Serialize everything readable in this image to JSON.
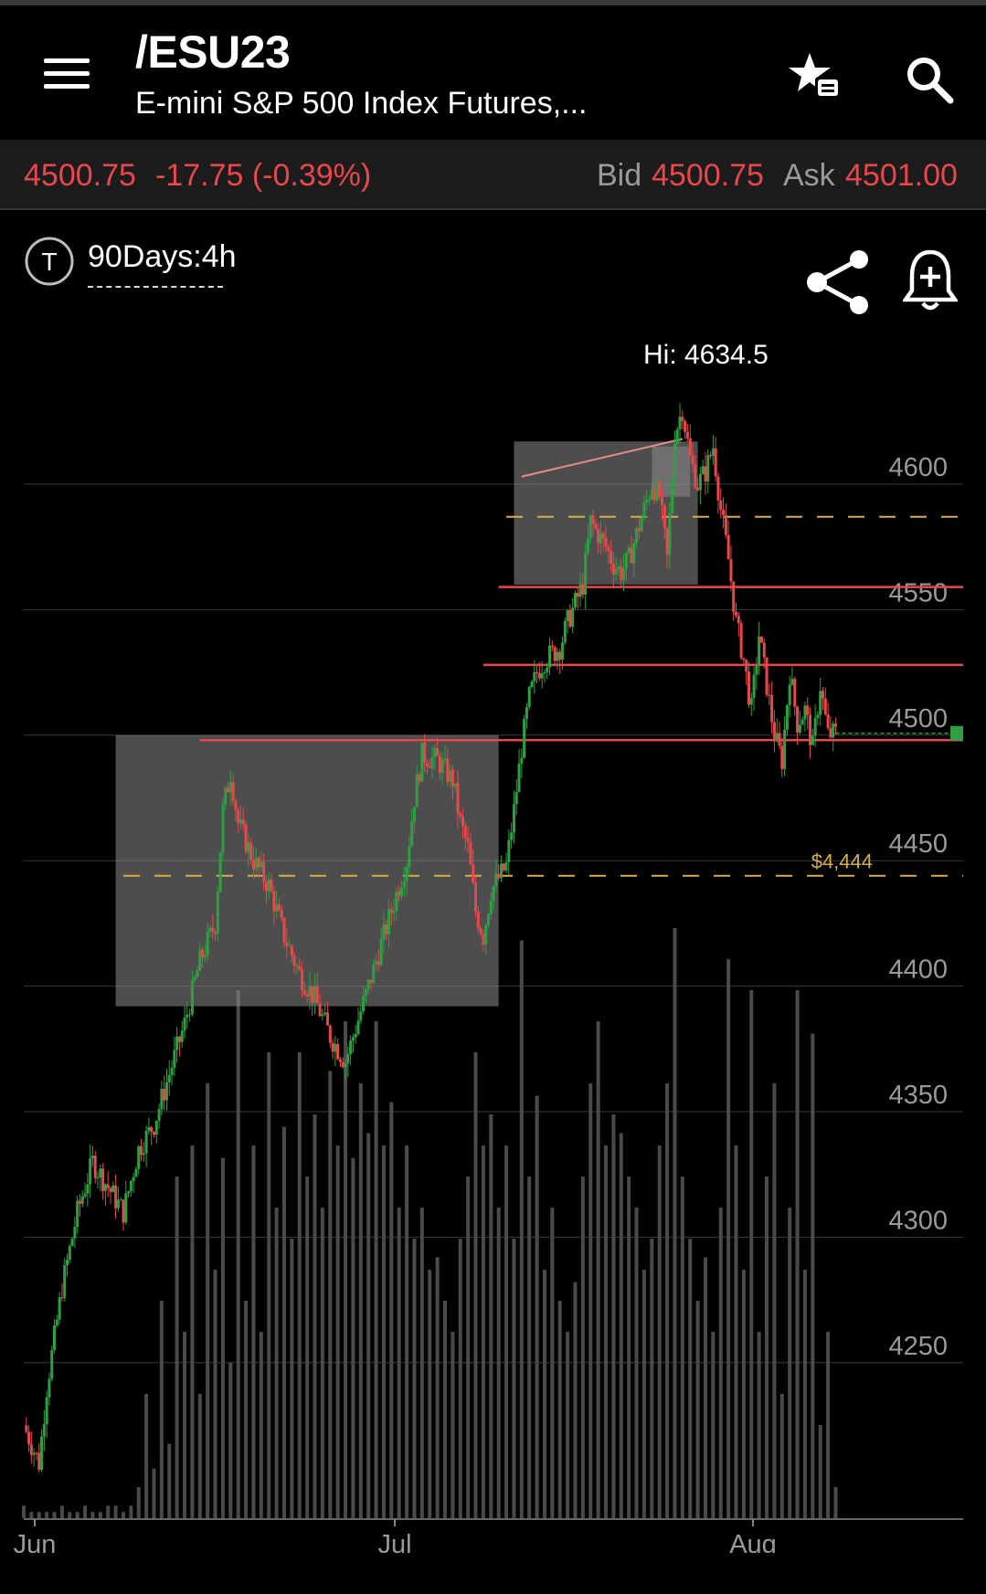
{
  "header": {
    "symbol": "/ESU23",
    "description": "E-mini S&P 500 Index Futures,...",
    "icons": [
      "menu-icon",
      "watchlist-add-icon",
      "search-icon"
    ]
  },
  "quote": {
    "last": "4500.75",
    "change": "-17.75 (-0.39%)",
    "bid_label": "Bid",
    "bid": "4500.75",
    "ask_label": "Ask",
    "ask": "4501.00"
  },
  "chart_header": {
    "timeframe": "90Days:4h",
    "icons": [
      "timeframe-icon",
      "share-icon",
      "price-alert-icon"
    ]
  },
  "colors": {
    "down": "#e8474b",
    "up": "#2ea043",
    "dashed_line": "#d4b04a",
    "box": "#8c8c8c",
    "background": "#000000"
  },
  "chart_data": {
    "type": "candlestick",
    "title": "",
    "high_label": "Hi: 4634.5",
    "yticks": [
      4250,
      4300,
      4350,
      4400,
      4450,
      4500,
      4550,
      4600
    ],
    "xticks": [
      "Jun",
      "Jul",
      "Aug"
    ],
    "ylim": [
      4200,
      4650
    ],
    "grid": true,
    "close_path": [
      [
        0,
        4225
      ],
      [
        2,
        4210
      ],
      [
        3,
        4240
      ],
      [
        5,
        4280
      ],
      [
        7,
        4310
      ],
      [
        9,
        4330
      ],
      [
        11,
        4320
      ],
      [
        13,
        4310
      ],
      [
        15,
        4335
      ],
      [
        17,
        4345
      ],
      [
        19,
        4365
      ],
      [
        21,
        4385
      ],
      [
        23,
        4410
      ],
      [
        25,
        4425
      ],
      [
        26,
        4470
      ],
      [
        27,
        4485
      ],
      [
        28,
        4465
      ],
      [
        30,
        4450
      ],
      [
        32,
        4440
      ],
      [
        34,
        4420
      ],
      [
        36,
        4405
      ],
      [
        38,
        4395
      ],
      [
        40,
        4380
      ],
      [
        42,
        4370
      ],
      [
        44,
        4390
      ],
      [
        46,
        4410
      ],
      [
        48,
        4430
      ],
      [
        50,
        4450
      ],
      [
        51,
        4475
      ],
      [
        52,
        4492
      ],
      [
        54,
        4490
      ],
      [
        56,
        4482
      ],
      [
        57,
        4465
      ],
      [
        58,
        4455
      ],
      [
        59,
        4430
      ],
      [
        60,
        4420
      ],
      [
        61,
        4438
      ],
      [
        63,
        4448
      ],
      [
        64,
        4470
      ],
      [
        65,
        4495
      ],
      [
        66,
        4515
      ],
      [
        67,
        4525
      ],
      [
        68,
        4530
      ],
      [
        70,
        4535
      ],
      [
        71,
        4545
      ],
      [
        73,
        4560
      ],
      [
        74,
        4585
      ],
      [
        75,
        4580
      ],
      [
        76,
        4575
      ],
      [
        77,
        4568
      ],
      [
        78,
        4565
      ],
      [
        79,
        4570
      ],
      [
        80,
        4580
      ],
      [
        81,
        4590
      ],
      [
        82,
        4600
      ],
      [
        83,
        4595
      ],
      [
        84,
        4570
      ],
      [
        85,
        4620
      ],
      [
        86,
        4630
      ],
      [
        87,
        4610
      ],
      [
        88,
        4600
      ],
      [
        89,
        4605
      ],
      [
        90,
        4615
      ],
      [
        91,
        4590
      ],
      [
        92,
        4570
      ],
      [
        93,
        4545
      ],
      [
        94,
        4530
      ],
      [
        95,
        4510
      ],
      [
        96,
        4540
      ],
      [
        97,
        4520
      ],
      [
        98,
        4500
      ],
      [
        99,
        4490
      ],
      [
        100,
        4525
      ],
      [
        101,
        4505
      ],
      [
        102,
        4510
      ],
      [
        103,
        4495
      ],
      [
        104,
        4520
      ],
      [
        105,
        4500
      ],
      [
        106,
        4500.75
      ]
    ],
    "volume_relative": [
      0.02,
      0.01,
      0.01,
      0.01,
      0.01,
      0.02,
      0.01,
      0.01,
      0.02,
      0.01,
      0.01,
      0.02,
      0.02,
      0.01,
      0.02,
      0.05,
      0.2,
      0.08,
      0.35,
      0.12,
      0.55,
      0.3,
      0.6,
      0.2,
      0.7,
      0.4,
      0.58,
      0.25,
      0.85,
      0.35,
      0.6,
      0.3,
      0.75,
      0.5,
      0.63,
      0.45,
      0.75,
      0.55,
      0.65,
      0.5,
      0.72,
      0.6,
      0.8,
      0.58,
      0.7,
      0.62,
      0.8,
      0.6,
      0.67,
      0.5,
      0.6,
      0.45,
      0.5,
      0.4,
      0.42,
      0.35,
      0.3,
      0.45,
      0.55,
      0.75,
      0.6,
      0.65,
      0.5,
      0.6,
      0.45,
      0.93,
      0.55,
      0.68,
      0.4,
      0.5,
      0.35,
      0.3,
      0.38,
      0.55,
      0.7,
      0.8,
      0.6,
      0.65,
      0.62,
      0.55,
      0.5,
      0.4,
      0.45,
      0.6,
      0.7,
      0.95,
      0.55,
      0.45,
      0.35,
      0.42,
      0.3,
      0.5,
      0.9,
      0.6,
      0.4,
      0.85,
      0.3,
      0.55,
      0.7,
      0.2,
      0.5,
      0.85,
      0.4,
      0.78,
      0.15,
      0.3,
      0.05
    ],
    "horizontal_lines": [
      {
        "price": 4498,
        "style": "solid",
        "color": "red",
        "from": 23,
        "to": 110
      },
      {
        "price": 4528,
        "style": "solid",
        "color": "red",
        "from": 60,
        "to": 110
      },
      {
        "price": 4559,
        "style": "solid",
        "color": "red",
        "from": 62,
        "to": 110
      },
      {
        "price": 4587,
        "style": "dashed",
        "color": "yellow",
        "from": 63,
        "to": 110
      },
      {
        "price": 4444,
        "style": "dashed",
        "color": "yellow",
        "from": 13,
        "to": 110,
        "label": "$4,444"
      }
    ],
    "rectangles": [
      {
        "x0": 12,
        "x1": 62,
        "y0": 4392,
        "y1": 4500
      },
      {
        "x0": 64,
        "x1": 88,
        "y0": 4560,
        "y1": 4617
      },
      {
        "x0": 82,
        "x1": 87,
        "y0": 4595,
        "y1": 4615
      }
    ],
    "trend_line": {
      "x0": 65,
      "y0": 4603,
      "x1": 86,
      "y1": 4618
    }
  }
}
